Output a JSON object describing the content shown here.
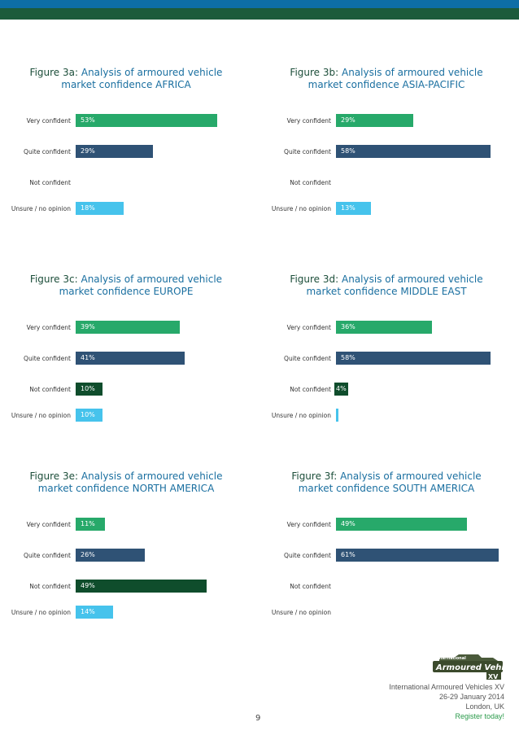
{
  "charts": [
    {
      "id": "3a",
      "title_lead": "Figure 3a:",
      "title_line1": "Analysis of armoured vehicle",
      "title_line2": "market confidence AFRICA",
      "chart_data": {
        "type": "bar",
        "categories": [
          "Very confident",
          "Quite confident",
          "Not confident",
          "Unsure / no opinion"
        ],
        "values": [
          53,
          29,
          0,
          18
        ],
        "value_labels": [
          "53%",
          "29%",
          "",
          "18%"
        ]
      }
    },
    {
      "id": "3b",
      "title_lead": "Figure 3b:",
      "title_line1": "Analysis of armoured vehicle",
      "title_line2": "market confidence ASIA-PACIFIC",
      "chart_data": {
        "type": "bar",
        "categories": [
          "Very confident",
          "Quite confident",
          "Not confident",
          "Unsure / no opinion"
        ],
        "values": [
          29,
          58,
          0,
          13
        ],
        "value_labels": [
          "29%",
          "58%",
          "",
          "13%"
        ]
      }
    },
    {
      "id": "3c",
      "title_lead": "Figure 3c:",
      "title_line1": "Analysis of armoured vehicle",
      "title_line2": "market confidence EUROPE",
      "chart_data": {
        "type": "bar",
        "categories": [
          "Very confident",
          "Quite confident",
          "Not confident",
          "Unsure / no opinion"
        ],
        "values": [
          39,
          41,
          10,
          10
        ],
        "value_labels": [
          "39%",
          "41%",
          "10%",
          "10%"
        ]
      }
    },
    {
      "id": "3d",
      "title_lead": "Figure 3d:",
      "title_line1": "Analysis of armoured vehicle",
      "title_line2": "market confidence MIDDLE EAST",
      "chart_data": {
        "type": "bar",
        "categories": [
          "Very confident",
          "Quite confident",
          "Not confident",
          "Unsure / no opinion"
        ],
        "values": [
          36,
          58,
          4,
          1
        ],
        "value_labels": [
          "36%",
          "58%",
          "4%",
          ""
        ]
      }
    },
    {
      "id": "3e",
      "title_lead": "Figure 3e:",
      "title_line1": "Analysis of armoured vehicle",
      "title_line2": "market confidence NORTH AMERICA",
      "chart_data": {
        "type": "bar",
        "categories": [
          "Very confident",
          "Quite confident",
          "Not confident",
          "Unsure / no opinion"
        ],
        "values": [
          11,
          26,
          49,
          14
        ],
        "value_labels": [
          "11%",
          "26%",
          "49%",
          "14%"
        ]
      }
    },
    {
      "id": "3f",
      "title_lead": "Figure 3f:",
      "title_line1": "Analysis of armoured vehicle",
      "title_line2": "market confidence SOUTH AMERICA",
      "chart_data": {
        "type": "bar",
        "categories": [
          "Very confident",
          "Quite confident",
          "Not confident",
          "Unsure / no opinion"
        ],
        "values": [
          49,
          61,
          0,
          0
        ],
        "value_labels": [
          "49%",
          "61%",
          "",
          ""
        ]
      }
    }
  ],
  "colors": {
    "very_confident": "#27a96a",
    "quite_confident": "#2f5275",
    "not_confident": "#0f4d2c",
    "unsure": "#46c3ec"
  },
  "footer": {
    "event": "International Armoured Vehicles XV",
    "dates": "26-29 January 2014",
    "location": "London, UK",
    "cta": "Register today!"
  },
  "logo": {
    "line1": "International",
    "line2": "Armoured Vehicles",
    "edition": "XV"
  },
  "page_number": "9"
}
